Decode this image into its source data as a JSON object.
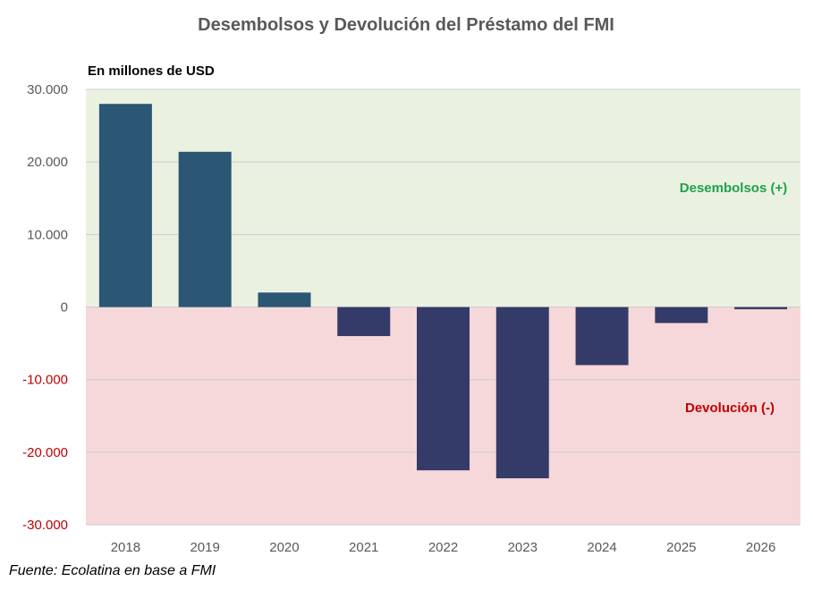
{
  "colors": {
    "positive_bar": "#2b5674",
    "negative_bar": "#343b68",
    "positive_bg": "#ebf1e1",
    "negative_bg": "#f6d8da",
    "positive_label": "#1fa14a",
    "negative_label": "#c00000",
    "tick_positive": "#595959",
    "tick_negative": "#c00000",
    "gridline": "#cccccc"
  },
  "source": "Fuente: Ecolatina en base a FMI",
  "chart_data": {
    "type": "bar",
    "title": "Desembolsos y Devolución del Préstamo del FMI",
    "unit_label": "En millones de USD",
    "xlabel": "",
    "ylabel": "",
    "categories": [
      "2018",
      "2019",
      "2020",
      "2021",
      "2022",
      "2023",
      "2024",
      "2025",
      "2026"
    ],
    "values": [
      28000,
      21400,
      2000,
      -4000,
      -22500,
      -23600,
      -8000,
      -2200,
      -300
    ],
    "ylim": [
      -30000,
      30000
    ],
    "yticks": [
      30000,
      20000,
      10000,
      0,
      -10000,
      -20000,
      -30000
    ],
    "ytick_labels": [
      "30.000",
      "20.000",
      "10.000",
      "0",
      "-10.000",
      "-20.000",
      "-30.000"
    ],
    "grid": true,
    "annotations": {
      "positive": "Desembolsos (+)",
      "negative": "Devolución (-)"
    }
  }
}
